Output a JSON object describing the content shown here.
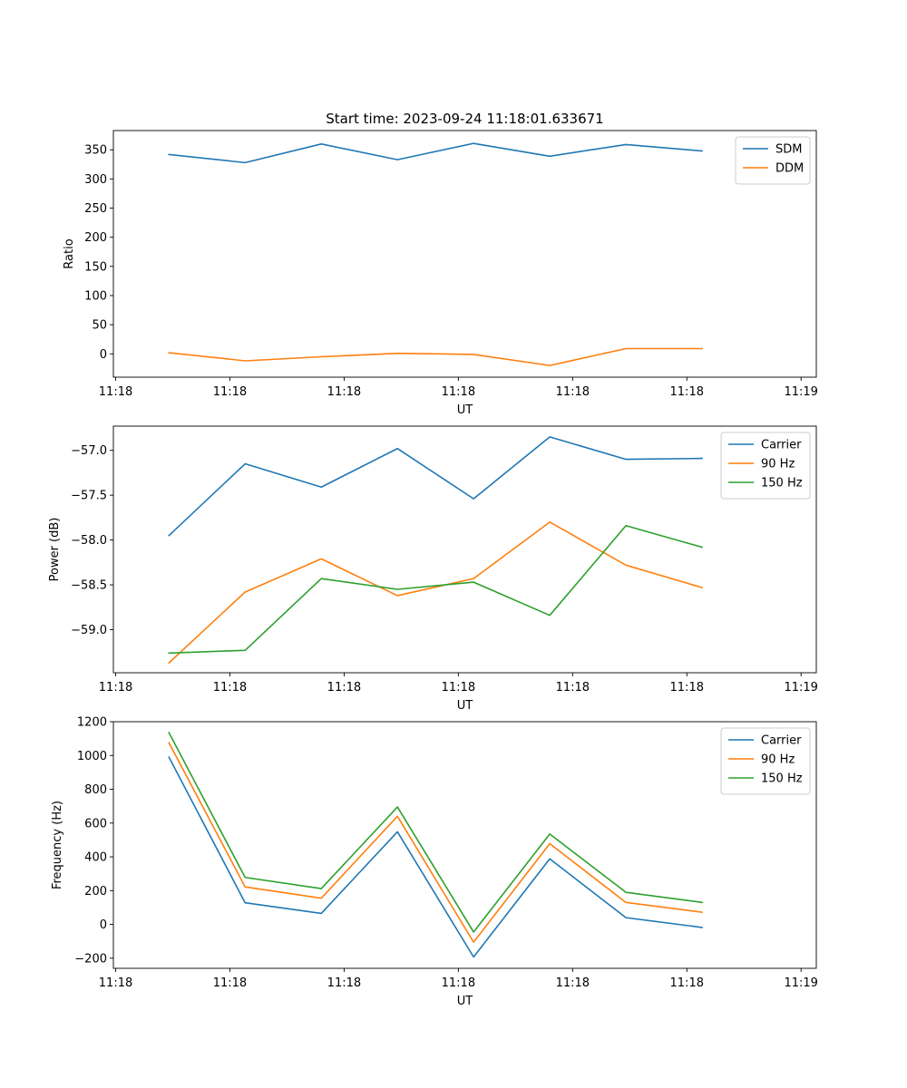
{
  "figure": {
    "title": "Start time: 2023-09-24 11:18:01.633671"
  },
  "chart_data": [
    {
      "type": "line",
      "title": "Start time: 2023-09-24 11:18:01.633671",
      "xlabel": "UT",
      "ylabel": "Ratio",
      "xlim": [
        -0.53,
        8.7
      ],
      "ylim": [
        -40,
        383
      ],
      "x": [
        0.2,
        1.2,
        2.2,
        3.2,
        4.2,
        5.2,
        6.2,
        7.2
      ],
      "xticks": [
        -0.5,
        1.0,
        2.5,
        4.0,
        5.5,
        7.0,
        8.5
      ],
      "xticklabels": [
        "11:18",
        "11:18",
        "11:18",
        "11:18",
        "11:18",
        "11:18",
        "11:19"
      ],
      "yticks": [
        0,
        50,
        100,
        150,
        200,
        250,
        300,
        350
      ],
      "yticklabels": [
        "0",
        "50",
        "100",
        "150",
        "200",
        "250",
        "300",
        "350"
      ],
      "legend": "top-right",
      "grid": false,
      "series": [
        {
          "name": "SDM",
          "color": "#1f77b4",
          "values": [
            342,
            328,
            360,
            333,
            361,
            339,
            359,
            348
          ]
        },
        {
          "name": "DDM",
          "color": "#ff7f0e",
          "values": [
            2,
            -12,
            -5,
            1,
            -1,
            -20,
            9,
            9
          ]
        }
      ]
    },
    {
      "type": "line",
      "title": "",
      "xlabel": "UT",
      "ylabel": "Power (dB)",
      "xlim": [
        -0.53,
        8.7
      ],
      "ylim": [
        -59.48,
        -56.73
      ],
      "x": [
        0.2,
        1.2,
        2.2,
        3.2,
        4.2,
        5.2,
        6.2,
        7.2
      ],
      "xticks": [
        -0.5,
        1.0,
        2.5,
        4.0,
        5.5,
        7.0,
        8.5
      ],
      "xticklabels": [
        "11:18",
        "11:18",
        "11:18",
        "11:18",
        "11:18",
        "11:18",
        "11:19"
      ],
      "yticks": [
        -59.0,
        -58.5,
        -58.0,
        -57.5,
        -57.0
      ],
      "yticklabels": [
        "−59.0",
        "−58.5",
        "−58.0",
        "−57.5",
        "−57.0"
      ],
      "legend": "top-right",
      "grid": false,
      "series": [
        {
          "name": "Carrier",
          "color": "#1f77b4",
          "values": [
            -57.95,
            -57.15,
            -57.41,
            -56.98,
            -57.54,
            -56.85,
            -57.1,
            -57.09
          ]
        },
        {
          "name": "90 Hz",
          "color": "#ff7f0e",
          "values": [
            -59.37,
            -58.58,
            -58.21,
            -58.62,
            -58.43,
            -57.8,
            -58.28,
            -58.53
          ]
        },
        {
          "name": "150 Hz",
          "color": "#2ca02c",
          "values": [
            -59.26,
            -59.23,
            -58.43,
            -58.55,
            -58.47,
            -58.84,
            -57.84,
            -58.08
          ]
        }
      ]
    },
    {
      "type": "line",
      "title": "",
      "xlabel": "UT",
      "ylabel": "Frequency (Hz)",
      "xlim": [
        -0.53,
        8.7
      ],
      "ylim": [
        -260,
        1200
      ],
      "x": [
        0.2,
        1.2,
        2.2,
        3.2,
        4.2,
        5.2,
        6.2,
        7.2
      ],
      "xticks": [
        -0.5,
        1.0,
        2.5,
        4.0,
        5.5,
        7.0,
        8.5
      ],
      "xticklabels": [
        "11:18",
        "11:18",
        "11:18",
        "11:18",
        "11:18",
        "11:18",
        "11:19"
      ],
      "yticks": [
        -200,
        0,
        200,
        400,
        600,
        800,
        1000,
        1200
      ],
      "yticklabels": [
        "−200",
        "0",
        "200",
        "400",
        "600",
        "800",
        "1000",
        "1200"
      ],
      "legend": "top-right",
      "grid": false,
      "series": [
        {
          "name": "Carrier",
          "color": "#1f77b4",
          "values": [
            990,
            128,
            65,
            548,
            -193,
            388,
            40,
            -18
          ]
        },
        {
          "name": "90 Hz",
          "color": "#ff7f0e",
          "values": [
            1075,
            222,
            155,
            640,
            -105,
            478,
            130,
            72
          ]
        },
        {
          "name": "150 Hz",
          "color": "#2ca02c",
          "values": [
            1135,
            278,
            212,
            695,
            -45,
            535,
            190,
            130
          ]
        }
      ]
    }
  ]
}
